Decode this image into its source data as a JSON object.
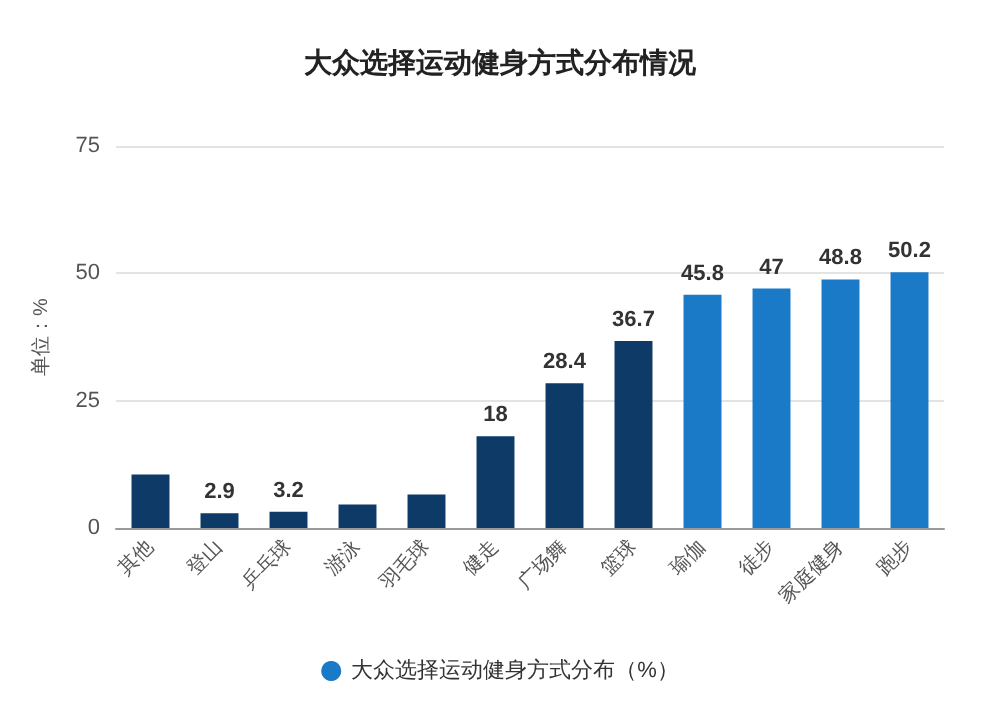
{
  "chart_data": {
    "type": "bar",
    "title": "大众选择运动健身方式分布情况",
    "ylabel": "单位：%",
    "categories": [
      "其他",
      "登山",
      "乒乓球",
      "游泳",
      "羽毛球",
      "健走",
      "广场舞",
      "篮球",
      "瑜伽",
      "徒步",
      "家庭健身",
      "跑步"
    ],
    "series": [
      {
        "name": "大众选择运动健身方式分布（%）",
        "color": "#1a7ac8",
        "values": [
          10.5,
          2.9,
          3.2,
          4.6,
          6.6,
          18,
          28.4,
          36.7,
          45.8,
          47,
          48.8,
          50.2
        ],
        "colors": [
          "#0d3a66",
          "#0d3a66",
          "#0d3a66",
          "#0d3a66",
          "#0d3a66",
          "#0d3a66",
          "#0d3a66",
          "#0d3a66",
          "#1a7ac8",
          "#1a7ac8",
          "#1a7ac8",
          "#1a7ac8"
        ],
        "value_labels": [
          null,
          "2.9",
          "3.2",
          null,
          null,
          "18",
          "28.4",
          "36.7",
          "45.8",
          "47",
          "48.8",
          "50.2"
        ]
      }
    ],
    "ylim": [
      0,
      75
    ],
    "yticks": [
      0,
      25,
      50,
      75
    ],
    "grid": "y",
    "legend": "bottom"
  }
}
